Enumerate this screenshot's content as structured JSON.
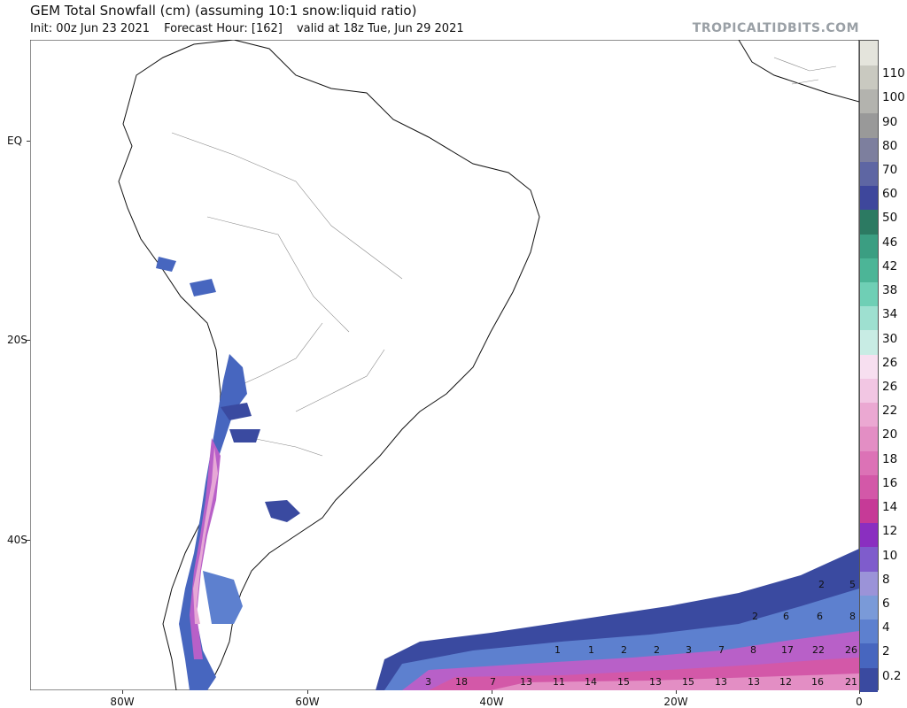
{
  "header": {
    "title": "GEM Total Snowfall (cm) (assuming 10:1 snow:liquid ratio)",
    "init": "Init: 00z Jun 23 2021",
    "forecast_hour": "Forecast Hour: [162]",
    "valid": "valid at 18z Tue, Jun 29 2021",
    "brand": "TROPICALTIDBITS.COM"
  },
  "axes": {
    "lat_labels": [
      "EQ",
      "20S",
      "40S"
    ],
    "lon_labels": [
      "80W",
      "60W",
      "40W",
      "20W",
      "0"
    ]
  },
  "colorbar": {
    "levels": [
      "0.2",
      "2",
      "4",
      "6",
      "8",
      "10",
      "12",
      "14",
      "16",
      "18",
      "20",
      "22",
      "26",
      "26",
      "30",
      "34",
      "38",
      "42",
      "46",
      "50",
      "60",
      "70",
      "80",
      "90",
      "100",
      "110"
    ],
    "colors": [
      "#3a4aa0",
      "#4766bf",
      "#5d80cf",
      "#7a9ad8",
      "#9b93d8",
      "#7f5ccc",
      "#8a2fc0",
      "#c63a97",
      "#d358a8",
      "#dc72b6",
      "#e38ec4",
      "#eba8d2",
      "#f2c6e3",
      "#f7dff0",
      "#c8ece4",
      "#9ee0d0",
      "#6fcfb5",
      "#4cb597",
      "#3b9e82",
      "#2c7a62",
      "#3e479c",
      "#5e66a3",
      "#7d7f9e",
      "#999999",
      "#b3b3ae",
      "#c9c9c0",
      "#e4e4dc"
    ]
  },
  "value_labels": {
    "row1": [
      "2",
      "5"
    ],
    "row2": [
      "2",
      "6",
      "6",
      "8"
    ],
    "row3": [
      "1",
      "1",
      "2",
      "2",
      "3",
      "7",
      "8",
      "17",
      "22",
      "26"
    ],
    "row4": [
      "3",
      "18",
      "7",
      "13",
      "11",
      "14",
      "15",
      "13",
      "15",
      "13",
      "13",
      "12",
      "16",
      "21"
    ]
  }
}
